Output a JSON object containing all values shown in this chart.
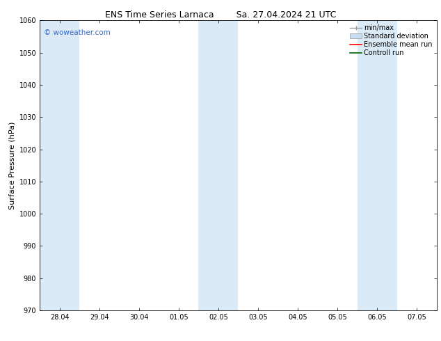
{
  "title_left": "ENS Time Series Larnaca",
  "title_right": "Sa. 27.04.2024 21 UTC",
  "ylabel": "Surface Pressure (hPa)",
  "ylim": [
    970,
    1060
  ],
  "yticks": [
    970,
    980,
    990,
    1000,
    1010,
    1020,
    1030,
    1040,
    1050,
    1060
  ],
  "xtick_labels": [
    "28.04",
    "29.04",
    "30.04",
    "01.05",
    "02.05",
    "03.05",
    "04.05",
    "05.05",
    "06.05",
    "07.05"
  ],
  "xtick_positions": [
    0,
    1,
    2,
    3,
    4,
    5,
    6,
    7,
    8,
    9
  ],
  "xlim": [
    -0.5,
    9.5
  ],
  "shaded_bands": [
    {
      "x_start": -0.5,
      "x_end": 0.5,
      "color": "#daeaf7"
    },
    {
      "x_start": 3.5,
      "x_end": 4.5,
      "color": "#daeaf7"
    },
    {
      "x_start": 7.5,
      "x_end": 8.5,
      "color": "#daeaf7"
    }
  ],
  "legend_items": [
    {
      "label": "min/max",
      "color": "#999999",
      "type": "errorbar"
    },
    {
      "label": "Standard deviation",
      "color": "#c8ddf0",
      "type": "band"
    },
    {
      "label": "Ensemble mean run",
      "color": "#ff0000",
      "type": "line"
    },
    {
      "label": "Controll run",
      "color": "#006600",
      "type": "line"
    }
  ],
  "watermark_text": "© woweather.com",
  "watermark_color": "#3366cc",
  "background_color": "#ffffff",
  "title_fontsize": 9,
  "ylabel_fontsize": 8,
  "tick_fontsize": 7,
  "legend_fontsize": 7
}
